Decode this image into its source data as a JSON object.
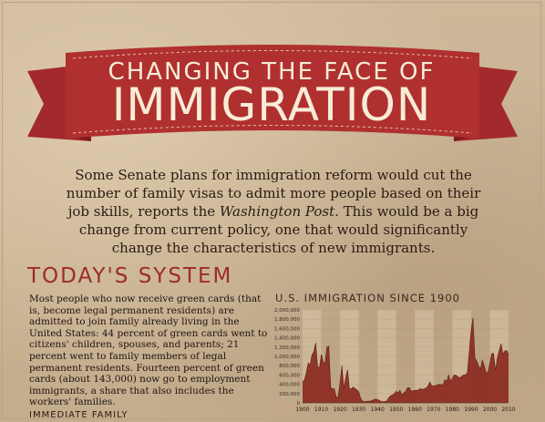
{
  "title": {
    "line1": "CHANGING THE FACE OF",
    "line2": "IMMIGRATION"
  },
  "intro": {
    "before_em": "Some Senate plans for immigration reform would cut the number of family visas to admit more people based on their job skills, reports the ",
    "em": "Washington Post",
    "after_em": ". This would be a big change from current policy, one that would significantly change the characteristics of new immigrants."
  },
  "section": {
    "heading": "TODAY'S SYSTEM",
    "body": "Most people who now receive green cards (that is, become legal permanent residents) are admitted to join family already living in the United States: 44 percent of green cards went to citizens' children, spouses, and parents; 21 percent went to family members of legal permanent residents. Fourteen percent of green cards (about 143,000) now go to employment immigrants, a share that also includes the workers' families.",
    "subheading": "IMMEDIATE FAMILY"
  },
  "colors": {
    "banner": "#a32a2c",
    "banner_dark": "#7a1a1c",
    "heading": "#9e2a2a",
    "area": "#8b2a1e",
    "area_light": "#b07a3a"
  },
  "chart_data": {
    "type": "area",
    "title": "U.S. IMMIGRATION SINCE 1900",
    "xlabel": "",
    "ylabel": "",
    "ylim": [
      0,
      2000000
    ],
    "yticks": [
      "2,000,000",
      "1,800,000",
      "1,600,000",
      "1,400,000",
      "1,200,000",
      "1,000,000",
      "800,000",
      "600,000",
      "400,000",
      "200,000",
      "0"
    ],
    "ytick_values": [
      2000000,
      1800000,
      1600000,
      1400000,
      1200000,
      1000000,
      800000,
      600000,
      400000,
      200000,
      0
    ],
    "xticks": [
      "1900",
      "1910",
      "1920",
      "1930",
      "1940",
      "1950",
      "1960",
      "1970",
      "1980",
      "1990",
      "2000",
      "2010"
    ],
    "xtick_values": [
      1900,
      1910,
      1920,
      1930,
      1940,
      1950,
      1960,
      1970,
      1980,
      1990,
      2000,
      2010
    ],
    "x": [
      1900,
      1901,
      1902,
      1903,
      1904,
      1905,
      1906,
      1907,
      1908,
      1909,
      1910,
      1911,
      1912,
      1913,
      1914,
      1915,
      1916,
      1917,
      1918,
      1919,
      1920,
      1921,
      1922,
      1923,
      1924,
      1925,
      1926,
      1927,
      1928,
      1929,
      1930,
      1931,
      1932,
      1933,
      1934,
      1935,
      1936,
      1937,
      1938,
      1939,
      1940,
      1941,
      1942,
      1943,
      1944,
      1945,
      1946,
      1947,
      1948,
      1949,
      1950,
      1951,
      1952,
      1953,
      1954,
      1955,
      1956,
      1957,
      1958,
      1959,
      1960,
      1961,
      1962,
      1963,
      1964,
      1965,
      1966,
      1967,
      1968,
      1969,
      1970,
      1971,
      1972,
      1973,
      1974,
      1975,
      1976,
      1977,
      1978,
      1979,
      1980,
      1981,
      1982,
      1983,
      1984,
      1985,
      1986,
      1987,
      1988,
      1989,
      1990,
      1991,
      1992,
      1993,
      1994,
      1995,
      1996,
      1997,
      1998,
      1999,
      2000,
      2001,
      2002,
      2003,
      2004,
      2005,
      2006,
      2007,
      2008,
      2009,
      2010
    ],
    "values": [
      450000,
      490000,
      650000,
      860000,
      810000,
      1030000,
      1100000,
      1290000,
      780000,
      750000,
      1040000,
      880000,
      840000,
      1200000,
      1220000,
      330000,
      300000,
      300000,
      110000,
      140000,
      430000,
      800000,
      310000,
      520000,
      710000,
      300000,
      300000,
      340000,
      310000,
      280000,
      240000,
      100000,
      35000,
      23000,
      30000,
      35000,
      36000,
      50000,
      68000,
      83000,
      71000,
      52000,
      29000,
      24000,
      29000,
      38000,
      110000,
      150000,
      170000,
      190000,
      250000,
      210000,
      270000,
      170000,
      210000,
      240000,
      320000,
      330000,
      250000,
      260000,
      265000,
      270000,
      280000,
      310000,
      290000,
      300000,
      320000,
      360000,
      450000,
      360000,
      370000,
      370000,
      385000,
      400000,
      395000,
      386000,
      500000,
      460000,
      600000,
      460000,
      530000,
      600000,
      590000,
      560000,
      540000,
      570000,
      600000,
      600000,
      640000,
      1090000,
      1540000,
      1830000,
      970000,
      900000,
      800000,
      720000,
      920000,
      800000,
      650000,
      650000,
      840000,
      1060000,
      1060000,
      700000,
      960000,
      1120000,
      1270000,
      1050000,
      1110000,
      1130000,
      1040000
    ]
  }
}
